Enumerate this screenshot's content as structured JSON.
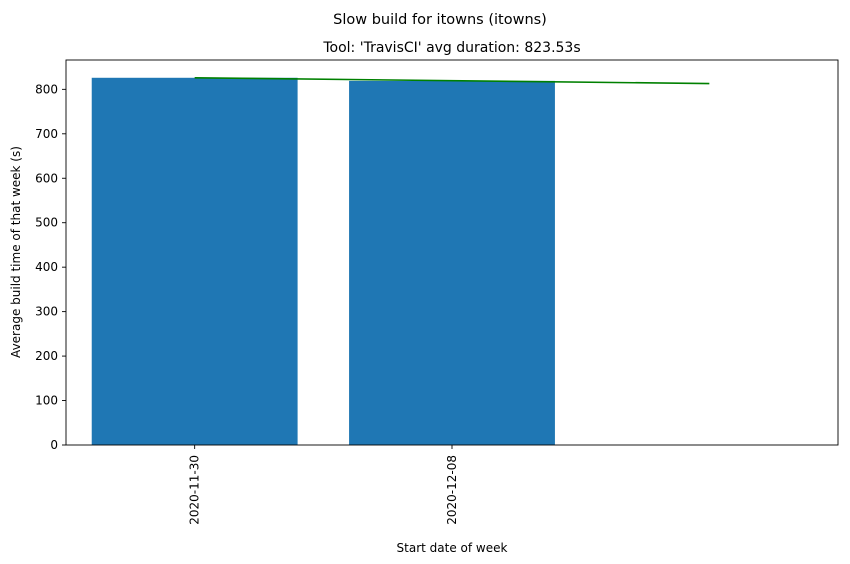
{
  "chart_data": {
    "type": "bar",
    "suptitle": "Slow build for itowns (itowns)",
    "title": "Tool: 'TravisCI' avg duration: 823.53s",
    "xlabel": "Start date of week",
    "ylabel": "Average build time of that week (s)",
    "categories": [
      "2020-11-30",
      "2020-12-08"
    ],
    "values": [
      826,
      819
    ],
    "trend_line": {
      "start": 826,
      "end": 813
    },
    "ylim": [
      0,
      866
    ],
    "yticks": [
      0,
      100,
      200,
      300,
      400,
      500,
      600,
      700,
      800
    ],
    "bar_color": "#1f77b4",
    "trend_color": "#008000",
    "grid": false
  }
}
